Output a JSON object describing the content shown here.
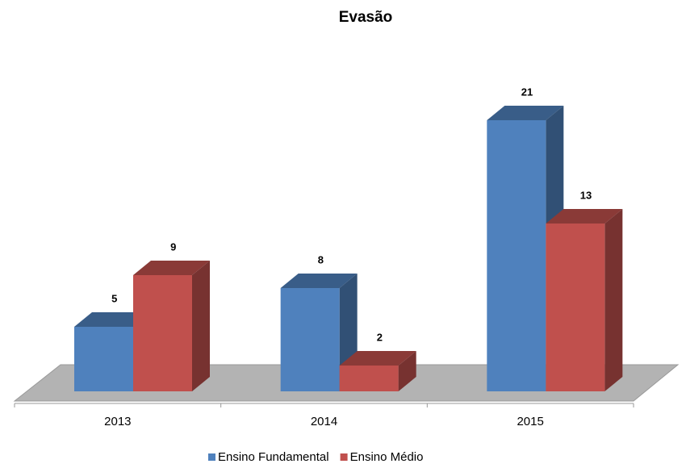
{
  "chart_data": {
    "type": "bar3d",
    "title": "Evasão",
    "categories": [
      "2013",
      "2014",
      "2015"
    ],
    "series": [
      {
        "name": "Ensino Fundamental",
        "color": "#4f81bd",
        "values": [
          5,
          8,
          21
        ]
      },
      {
        "name": "Ensino Médio",
        "color": "#c0504d",
        "values": [
          9,
          2,
          13
        ]
      }
    ]
  }
}
